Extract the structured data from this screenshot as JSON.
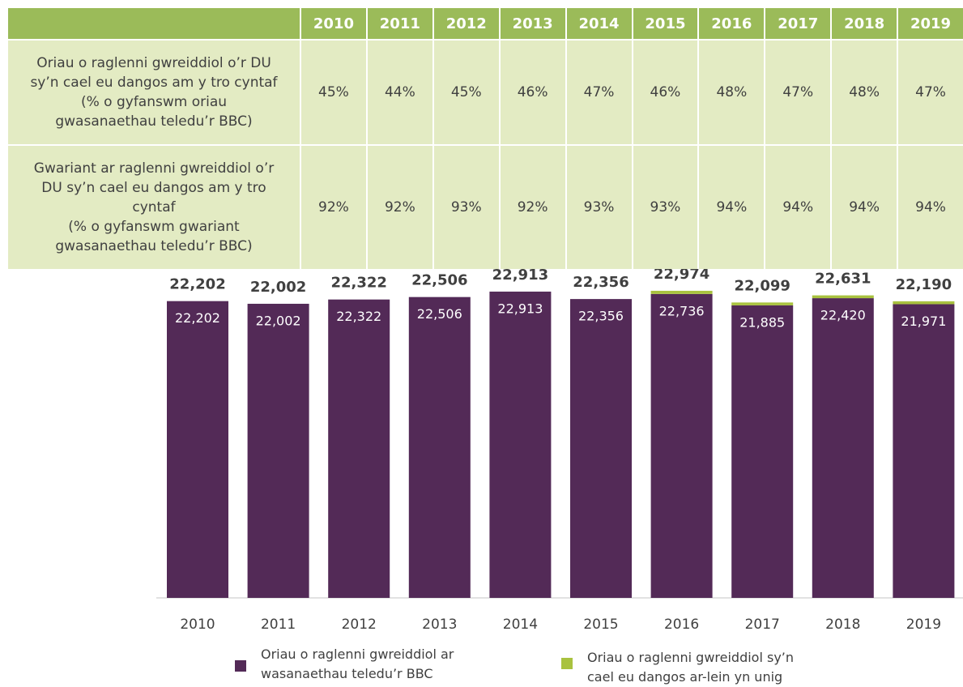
{
  "table": {
    "columns": [
      "2010",
      "2011",
      "2012",
      "2013",
      "2014",
      "2015",
      "2016",
      "2017",
      "2018",
      "2019"
    ],
    "rows": [
      {
        "label": [
          "Oriau o raglenni gwreiddiol o’r DU",
          "sy’n cael eu dangos am y tro cyntaf",
          "(% o gyfanswm oriau",
          "gwasanaethau teledu’r BBC)"
        ],
        "cells": [
          "45%",
          "44%",
          "45%",
          "46%",
          "47%",
          "46%",
          "48%",
          "47%",
          "48%",
          "47%"
        ]
      },
      {
        "label": [
          "Gwariant ar raglenni gwreiddiol o’r",
          "DU sy’n cael eu dangos am y tro",
          "cyntaf",
          "(% o gyfanswm gwariant",
          "gwasanaethau teledu’r BBC)"
        ],
        "cells": [
          "92%",
          "92%",
          "93%",
          "92%",
          "93%",
          "93%",
          "94%",
          "94%",
          "94%",
          "94%"
        ]
      }
    ]
  },
  "chart_data": {
    "type": "bar",
    "stacked": true,
    "categories": [
      "2010",
      "2011",
      "2012",
      "2013",
      "2014",
      "2015",
      "2016",
      "2017",
      "2018",
      "2019"
    ],
    "series": [
      {
        "name": "Oriau o raglenni gwreiddiol ar wasanaethau teledu’r BBC",
        "color": "#532a57",
        "values": [
          22202,
          22002,
          22322,
          22506,
          22913,
          22356,
          22736,
          21885,
          22420,
          21971
        ],
        "value_labels": [
          "22,202",
          "22,002",
          "22,322",
          "22,506",
          "22,913",
          "22,356",
          "22,736",
          "21,885",
          "22,420",
          "21,971"
        ]
      },
      {
        "name": "Oriau o raglenni gwreiddiol sy’n cael eu dangos ar-lein yn unig",
        "color": "#a9c23f",
        "values": [
          0,
          0,
          0,
          0,
          0,
          0,
          238,
          214,
          211,
          219
        ]
      }
    ],
    "totals": [
      22202,
      22002,
      22322,
      22506,
      22913,
      22356,
      22974,
      22099,
      22631,
      22190
    ],
    "total_labels": [
      "22,202",
      "22,002",
      "22,322",
      "22,506",
      "22,913",
      "22,356",
      "22,974",
      "22,099",
      "22,631",
      "22,190"
    ],
    "ylim": [
      0,
      24000
    ]
  }
}
